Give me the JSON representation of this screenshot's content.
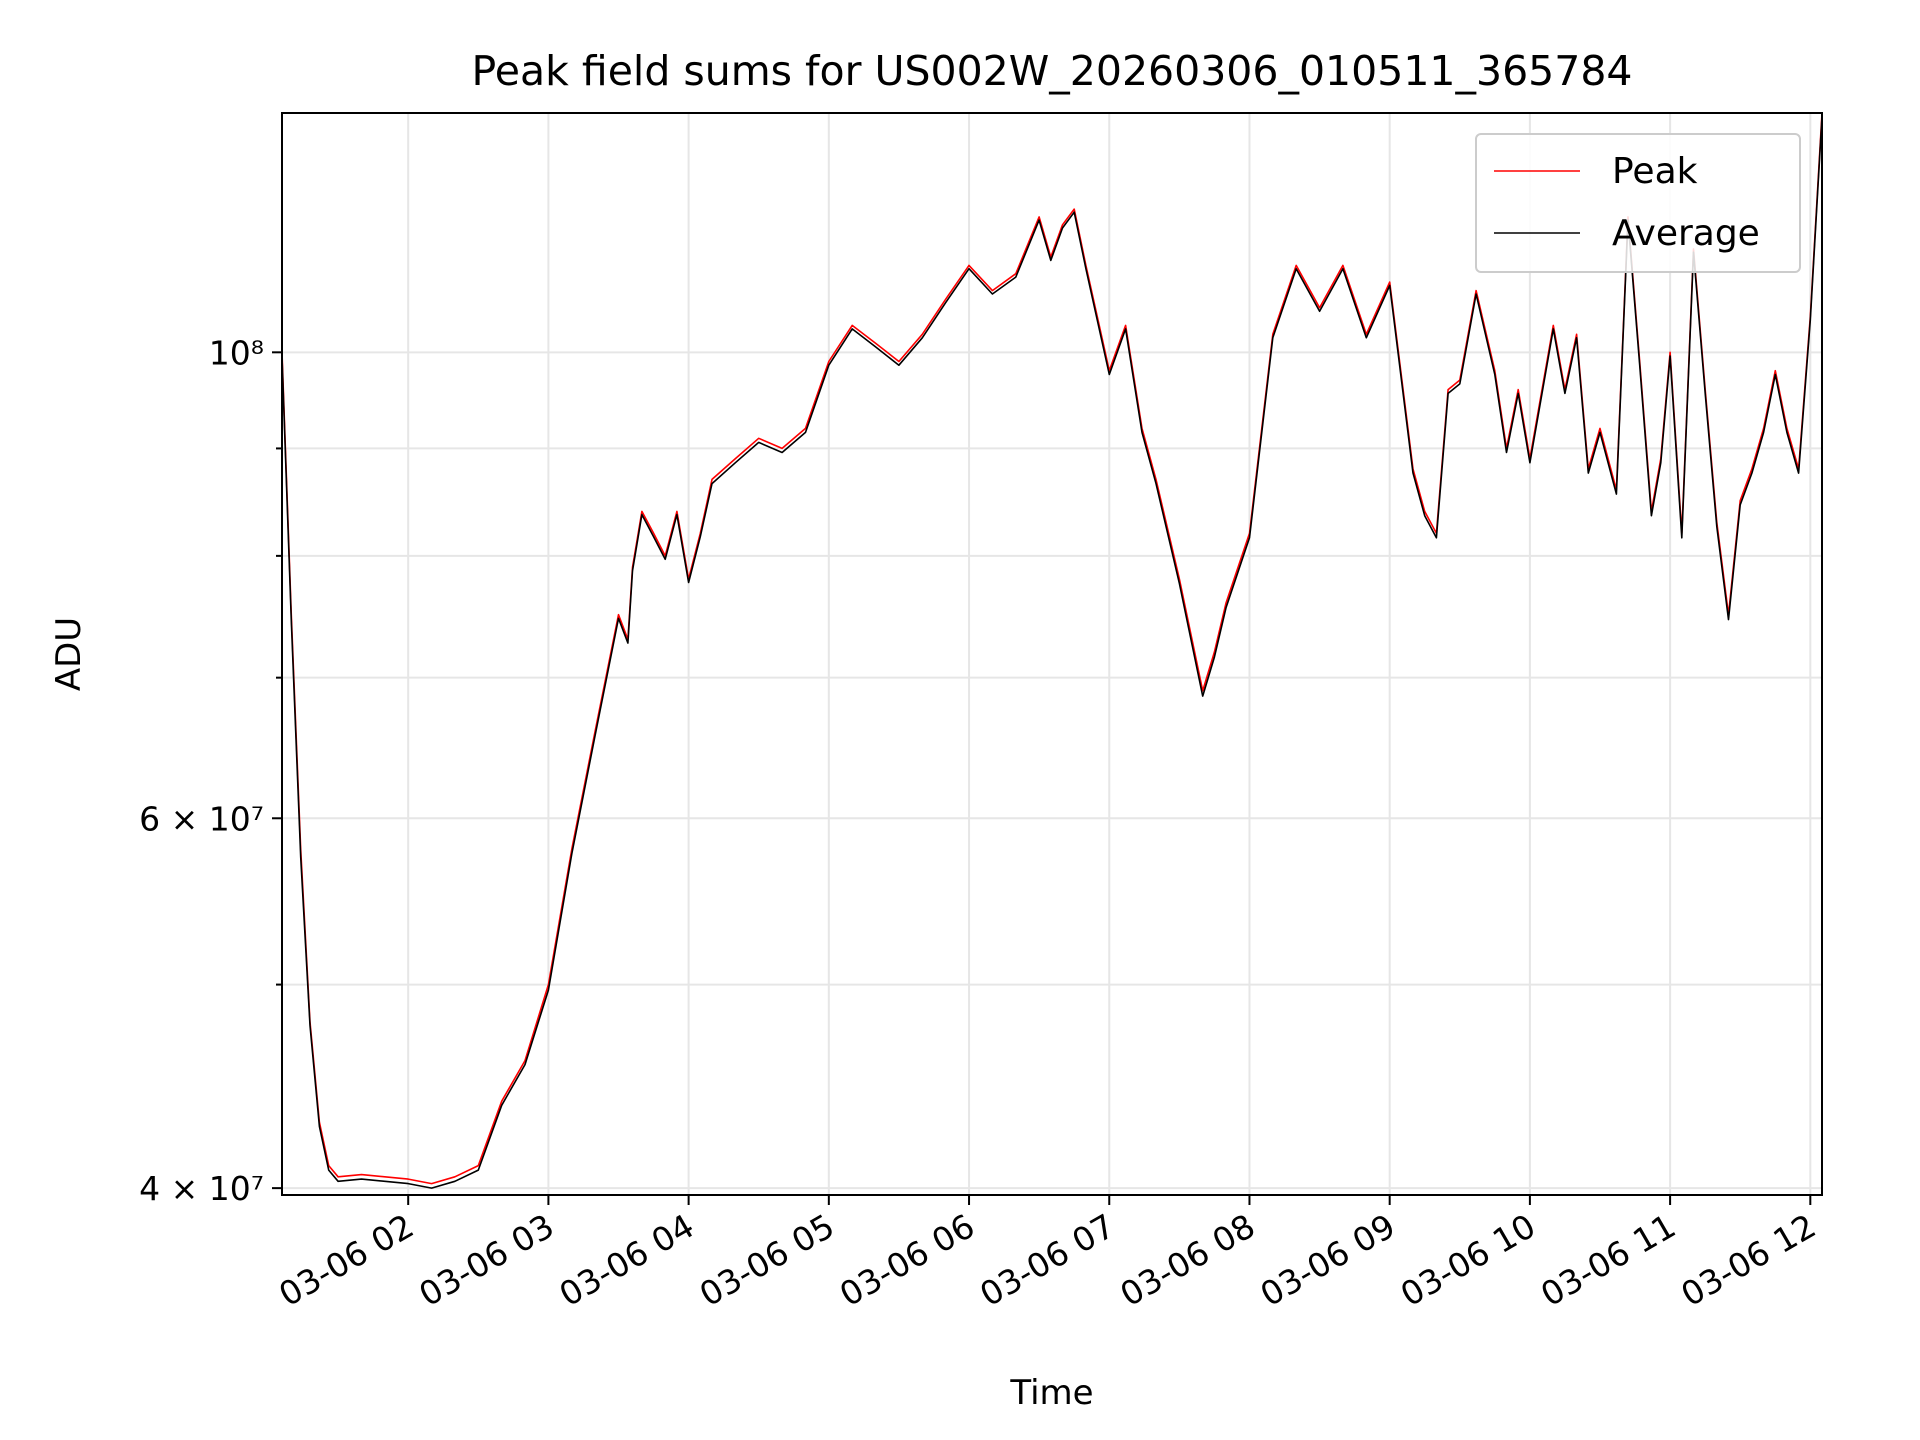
{
  "chart_data": {
    "type": "line",
    "title": "Peak field sums for US002W_20260306_010511_365784",
    "xlabel": "Time",
    "ylabel": "ADU",
    "x_scale": "time",
    "y_scale": "log",
    "xlim": [
      "2026-03-06 01:06",
      "2026-03-06 12:05"
    ],
    "ylim": [
      39700000,
      130000000
    ],
    "x_ticks": [
      "03-06 02",
      "03-06 03",
      "03-06 04",
      "03-06 05",
      "03-06 06",
      "03-06 07",
      "03-06 08",
      "03-06 09",
      "03-06 10",
      "03-06 11",
      "03-06 12"
    ],
    "y_ticks": [
      {
        "value": 40000000,
        "label": "4 × 10⁷",
        "major": true
      },
      {
        "value": 50000000,
        "label": "",
        "major": false
      },
      {
        "value": 60000000,
        "label": "6 × 10⁷",
        "major": true
      },
      {
        "value": 70000000,
        "label": "",
        "major": false
      },
      {
        "value": 80000000,
        "label": "",
        "major": false
      },
      {
        "value": 90000000,
        "label": "",
        "major": false
      },
      {
        "value": 100000000,
        "label": "10⁸",
        "major": true
      }
    ],
    "grid": true,
    "legend_position": "top-right",
    "series": [
      {
        "name": "Peak",
        "color": "#ff0000",
        "x": [
          "2026-03-06 01:06",
          "2026-03-06 01:10",
          "2026-03-06 01:14",
          "2026-03-06 01:18",
          "2026-03-06 01:22",
          "2026-03-06 01:26",
          "2026-03-06 01:30",
          "2026-03-06 01:40",
          "2026-03-06 01:50",
          "2026-03-06 02:00",
          "2026-03-06 02:10",
          "2026-03-06 02:20",
          "2026-03-06 02:30",
          "2026-03-06 02:40",
          "2026-03-06 02:50",
          "2026-03-06 03:00",
          "2026-03-06 03:10",
          "2026-03-06 03:20",
          "2026-03-06 03:30",
          "2026-03-06 03:34",
          "2026-03-06 03:36",
          "2026-03-06 03:40",
          "2026-03-06 03:45",
          "2026-03-06 03:50",
          "2026-03-06 03:55",
          "2026-03-06 04:00",
          "2026-03-06 04:05",
          "2026-03-06 04:10",
          "2026-03-06 04:20",
          "2026-03-06 04:30",
          "2026-03-06 04:40",
          "2026-03-06 04:50",
          "2026-03-06 05:00",
          "2026-03-06 05:10",
          "2026-03-06 05:20",
          "2026-03-06 05:30",
          "2026-03-06 05:40",
          "2026-03-06 05:50",
          "2026-03-06 06:00",
          "2026-03-06 06:10",
          "2026-03-06 06:20",
          "2026-03-06 06:30",
          "2026-03-06 06:35",
          "2026-03-06 06:40",
          "2026-03-06 06:45",
          "2026-03-06 06:50",
          "2026-03-06 07:00",
          "2026-03-06 07:07",
          "2026-03-06 07:14",
          "2026-03-06 07:20",
          "2026-03-06 07:30",
          "2026-03-06 07:40",
          "2026-03-06 07:45",
          "2026-03-06 07:50",
          "2026-03-06 08:00",
          "2026-03-06 08:10",
          "2026-03-06 08:20",
          "2026-03-06 08:30",
          "2026-03-06 08:40",
          "2026-03-06 08:50",
          "2026-03-06 09:00",
          "2026-03-06 09:10",
          "2026-03-06 09:15",
          "2026-03-06 09:20",
          "2026-03-06 09:25",
          "2026-03-06 09:30",
          "2026-03-06 09:37",
          "2026-03-06 09:45",
          "2026-03-06 09:50",
          "2026-03-06 09:55",
          "2026-03-06 10:00",
          "2026-03-06 10:10",
          "2026-03-06 10:15",
          "2026-03-06 10:20",
          "2026-03-06 10:25",
          "2026-03-06 10:30",
          "2026-03-06 10:37",
          "2026-03-06 10:42",
          "2026-03-06 10:47",
          "2026-03-06 10:52",
          "2026-03-06 10:56",
          "2026-03-06 11:00",
          "2026-03-06 11:05",
          "2026-03-06 11:10",
          "2026-03-06 11:15",
          "2026-03-06 11:20",
          "2026-03-06 11:25",
          "2026-03-06 11:30",
          "2026-03-06 11:35",
          "2026-03-06 11:40",
          "2026-03-06 11:45",
          "2026-03-06 11:50",
          "2026-03-06 11:55",
          "2026-03-06 12:00",
          "2026-03-06 12:05"
        ],
        "values": [
          100000000,
          75000000,
          58000000,
          48000000,
          43000000,
          41000000,
          40500000,
          40600000,
          40500000,
          40400000,
          40200000,
          40500000,
          41000000,
          44000000,
          46000000,
          50000000,
          58000000,
          66000000,
          75000000,
          73000000,
          79000000,
          84000000,
          82000000,
          80000000,
          84000000,
          78000000,
          82000000,
          87000000,
          89000000,
          91000000,
          90000000,
          92000000,
          99000000,
          103000000,
          101000000,
          99000000,
          102000000,
          106000000,
          110000000,
          107000000,
          109000000,
          116000000,
          111000000,
          115000000,
          117000000,
          110000000,
          98000000,
          103000000,
          92000000,
          87000000,
          78000000,
          69000000,
          72000000,
          76000000,
          82000000,
          102000000,
          110000000,
          105000000,
          110000000,
          102000000,
          108000000,
          88000000,
          84000000,
          82000000,
          96000000,
          97000000,
          107000000,
          98000000,
          90000000,
          96000000,
          89000000,
          103000000,
          96000000,
          102000000,
          88000000,
          92000000,
          86000000,
          116000000,
          99000000,
          84000000,
          89000000,
          100000000,
          82000000,
          112000000,
          96000000,
          83000000,
          75000000,
          85000000,
          88000000,
          92000000,
          98000000,
          92000000,
          88000000,
          104000000,
          130000000
        ]
      },
      {
        "name": "Average",
        "color": "#000000",
        "x": [
          "2026-03-06 01:06",
          "2026-03-06 01:10",
          "2026-03-06 01:14",
          "2026-03-06 01:18",
          "2026-03-06 01:22",
          "2026-03-06 01:26",
          "2026-03-06 01:30",
          "2026-03-06 01:40",
          "2026-03-06 01:50",
          "2026-03-06 02:00",
          "2026-03-06 02:10",
          "2026-03-06 02:20",
          "2026-03-06 02:30",
          "2026-03-06 02:40",
          "2026-03-06 02:50",
          "2026-03-06 03:00",
          "2026-03-06 03:10",
          "2026-03-06 03:20",
          "2026-03-06 03:30",
          "2026-03-06 03:34",
          "2026-03-06 03:36",
          "2026-03-06 03:40",
          "2026-03-06 03:45",
          "2026-03-06 03:50",
          "2026-03-06 03:55",
          "2026-03-06 04:00",
          "2026-03-06 04:05",
          "2026-03-06 04:10",
          "2026-03-06 04:20",
          "2026-03-06 04:30",
          "2026-03-06 04:40",
          "2026-03-06 04:50",
          "2026-03-06 05:00",
          "2026-03-06 05:10",
          "2026-03-06 05:20",
          "2026-03-06 05:30",
          "2026-03-06 05:40",
          "2026-03-06 05:50",
          "2026-03-06 06:00",
          "2026-03-06 06:10",
          "2026-03-06 06:20",
          "2026-03-06 06:30",
          "2026-03-06 06:35",
          "2026-03-06 06:40",
          "2026-03-06 06:45",
          "2026-03-06 06:50",
          "2026-03-06 07:00",
          "2026-03-06 07:07",
          "2026-03-06 07:14",
          "2026-03-06 07:20",
          "2026-03-06 07:30",
          "2026-03-06 07:40",
          "2026-03-06 07:45",
          "2026-03-06 07:50",
          "2026-03-06 08:00",
          "2026-03-06 08:10",
          "2026-03-06 08:20",
          "2026-03-06 08:30",
          "2026-03-06 08:40",
          "2026-03-06 08:50",
          "2026-03-06 09:00",
          "2026-03-06 09:10",
          "2026-03-06 09:15",
          "2026-03-06 09:20",
          "2026-03-06 09:25",
          "2026-03-06 09:30",
          "2026-03-06 09:37",
          "2026-03-06 09:45",
          "2026-03-06 09:50",
          "2026-03-06 09:55",
          "2026-03-06 10:00",
          "2026-03-06 10:10",
          "2026-03-06 10:15",
          "2026-03-06 10:20",
          "2026-03-06 10:25",
          "2026-03-06 10:30",
          "2026-03-06 10:37",
          "2026-03-06 10:42",
          "2026-03-06 10:47",
          "2026-03-06 10:52",
          "2026-03-06 10:56",
          "2026-03-06 11:00",
          "2026-03-06 11:05",
          "2026-03-06 11:10",
          "2026-03-06 11:15",
          "2026-03-06 11:20",
          "2026-03-06 11:25",
          "2026-03-06 11:30",
          "2026-03-06 11:35",
          "2026-03-06 11:40",
          "2026-03-06 11:45",
          "2026-03-06 11:50",
          "2026-03-06 11:55",
          "2026-03-06 12:00",
          "2026-03-06 12:05"
        ],
        "values": [
          99500000,
          74500000,
          57500000,
          47800000,
          42800000,
          40800000,
          40300000,
          40400000,
          40300000,
          40200000,
          40000000,
          40300000,
          40800000,
          43800000,
          45800000,
          49700000,
          57700000,
          65700000,
          74700000,
          72700000,
          78700000,
          83700000,
          81700000,
          79700000,
          83700000,
          77700000,
          81700000,
          86600000,
          88600000,
          90600000,
          89600000,
          91600000,
          98600000,
          102600000,
          100600000,
          98600000,
          101600000,
          105600000,
          109600000,
          106600000,
          108600000,
          115600000,
          110600000,
          114600000,
          116600000,
          109600000,
          97600000,
          102600000,
          91600000,
          86600000,
          77600000,
          68600000,
          71600000,
          75600000,
          81600000,
          101600000,
          109600000,
          104600000,
          109600000,
          101600000,
          107600000,
          87600000,
          83600000,
          81600000,
          95600000,
          96600000,
          106600000,
          97600000,
          89600000,
          95600000,
          88600000,
          102600000,
          95600000,
          101600000,
          87600000,
          91600000,
          85600000,
          115600000,
          98600000,
          83600000,
          88600000,
          99600000,
          81600000,
          111600000,
          95600000,
          82600000,
          74600000,
          84600000,
          87600000,
          91600000,
          97600000,
          91600000,
          87600000,
          103600000,
          129500000
        ]
      }
    ]
  }
}
